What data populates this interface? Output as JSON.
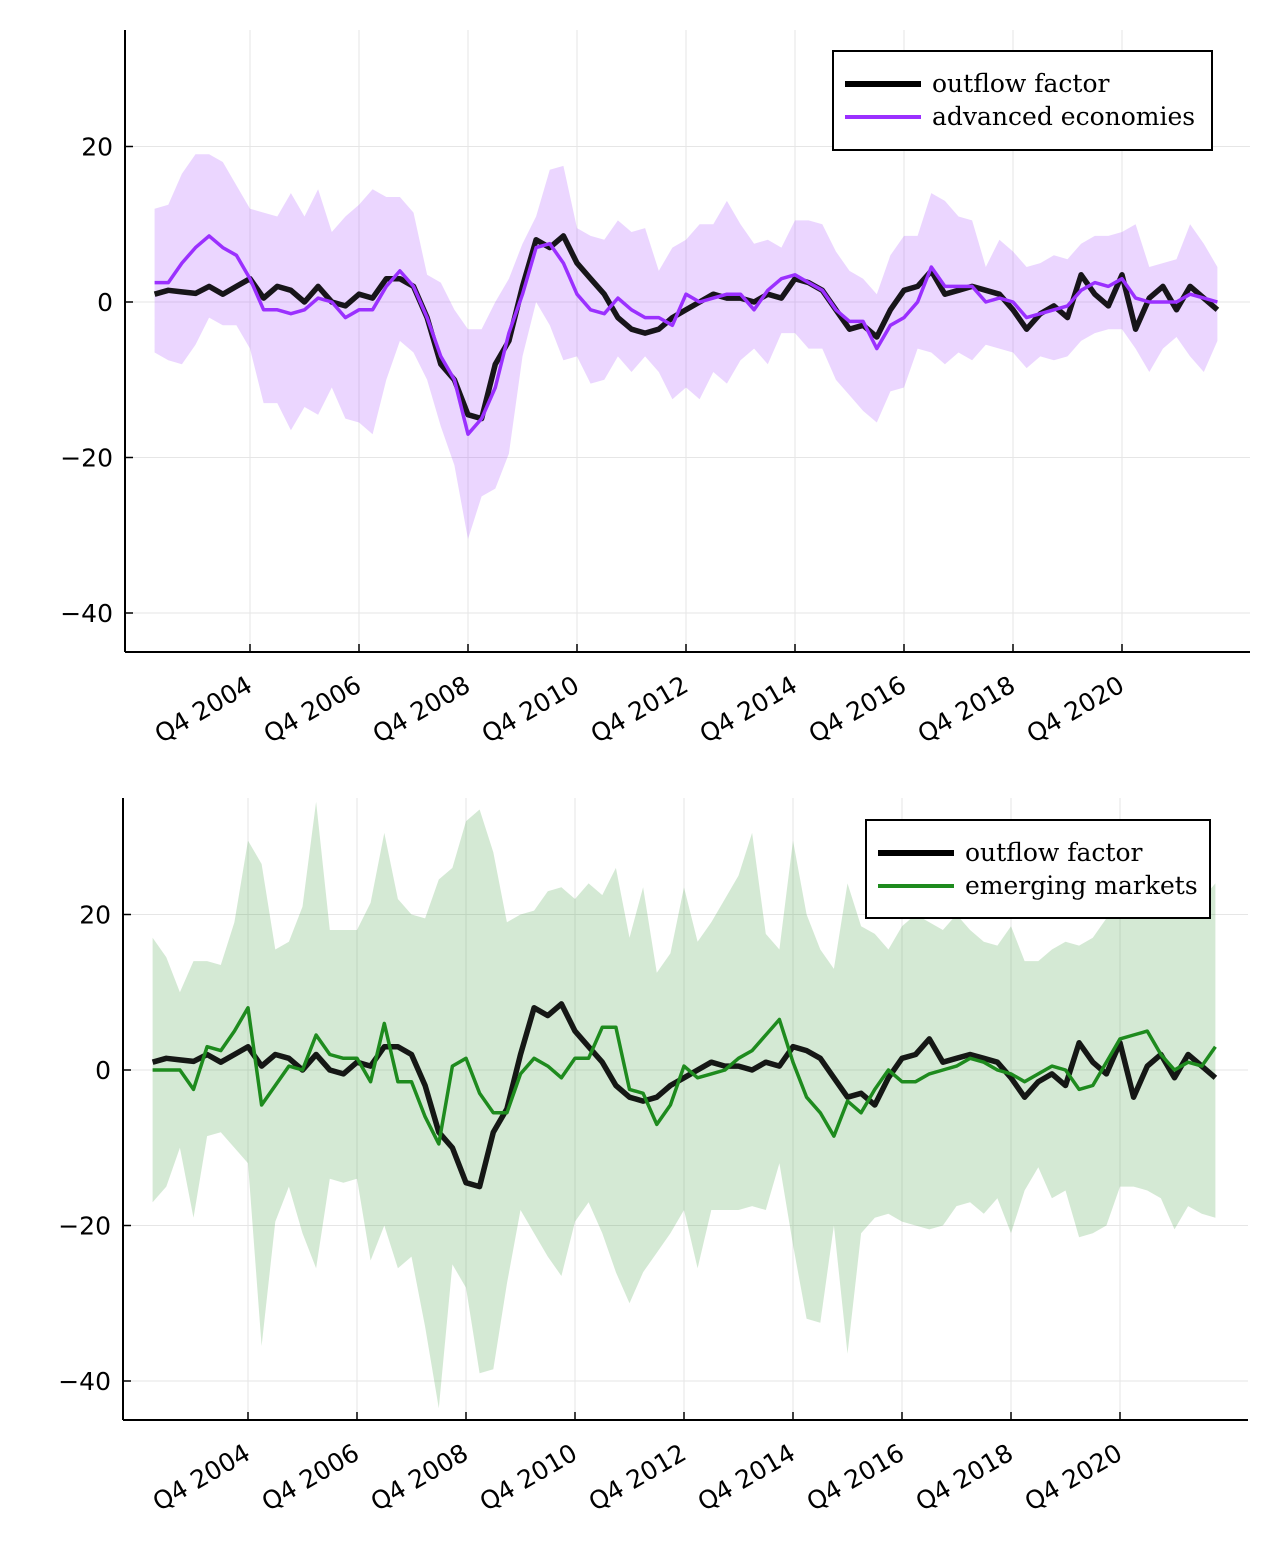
{
  "chart_data": [
    {
      "type": "line",
      "series_labels": [
        "outflow factor",
        "advanced economies"
      ],
      "ylim": [
        -45,
        35
      ],
      "yticks": [
        20,
        0,
        -20,
        -40
      ],
      "ytick_labels": [
        "20",
        "0",
        "−20",
        "−40"
      ],
      "xtick_labels": [
        "Q4 2004",
        "Q4 2006",
        "Q4 2008",
        "Q4 2010",
        "Q4 2012",
        "Q4 2014",
        "Q4 2016",
        "Q4 2018",
        "Q4 2020"
      ],
      "xtick_values": [
        2004.75,
        2006.75,
        2008.75,
        2010.75,
        2012.75,
        2014.75,
        2016.75,
        2018.75,
        2020.75
      ],
      "xlim": [
        2002.4,
        2023.1
      ],
      "grid": true,
      "legend_position": "top-right",
      "colors": {
        "factor": "#000000",
        "series": "#9b30ff",
        "band": "#9b30ff"
      },
      "x_start": 2003.0,
      "x_step": 0.25,
      "factor": [
        1.0,
        1.5,
        1.3,
        1.1,
        2.0,
        1.0,
        2.0,
        3.0,
        0.5,
        2.0,
        1.5,
        0.0,
        2.0,
        0.0,
        -0.5,
        1.0,
        0.5,
        3.0,
        3.0,
        2.0,
        -2.0,
        -8.0,
        -10.0,
        -14.5,
        -15.0,
        -8.0,
        -5.0,
        2.0,
        8.0,
        7.0,
        8.5,
        5.0,
        3.0,
        1.0,
        -2.0,
        -3.5,
        -4.0,
        -3.5,
        -2.0,
        -1.0,
        0.0,
        1.0,
        0.5,
        0.5,
        0.0,
        1.0,
        0.5,
        3.0,
        2.5,
        1.5,
        -1.0,
        -3.5,
        -3.0,
        -4.5,
        -1.0,
        1.5,
        2.0,
        4.0,
        1.0,
        1.5,
        2.0,
        1.5,
        1.0,
        -1.0,
        -3.5,
        -1.5,
        -0.5,
        -2.0,
        3.5,
        1.0,
        -0.5,
        3.5,
        -3.5,
        0.5,
        2.0,
        -1.0,
        2.0,
        0.5,
        -1.0
      ],
      "values": [
        2.5,
        2.5,
        5.0,
        7.0,
        8.5,
        7.0,
        6.0,
        3.0,
        -1.0,
        -1.0,
        -1.5,
        -1.0,
        0.5,
        0.0,
        -2.0,
        -1.0,
        -1.0,
        2.0,
        4.0,
        2.0,
        -2.0,
        -7.0,
        -10.0,
        -17.0,
        -15.0,
        -11.0,
        -4.0,
        1.0,
        7.0,
        7.5,
        5.0,
        1.0,
        -1.0,
        -1.5,
        0.5,
        -1.0,
        -2.0,
        -2.0,
        -3.0,
        1.0,
        0.0,
        0.5,
        1.0,
        1.0,
        -1.0,
        1.5,
        3.0,
        3.5,
        2.5,
        1.5,
        -1.0,
        -2.5,
        -2.5,
        -6.0,
        -3.0,
        -2.0,
        0.0,
        4.5,
        2.0,
        2.0,
        2.0,
        0.0,
        0.5,
        0.0,
        -2.0,
        -1.5,
        -1.0,
        -0.5,
        1.5,
        2.5,
        2.0,
        3.0,
        0.5,
        0.0,
        0.0,
        0.0,
        1.0,
        0.5,
        0.0
      ],
      "band_upper": [
        12.0,
        12.5,
        16.5,
        19.0,
        19.0,
        18.0,
        15.0,
        12.0,
        11.5,
        11.0,
        14.0,
        11.0,
        14.5,
        9.0,
        11.0,
        12.5,
        14.5,
        13.5,
        13.5,
        11.5,
        3.5,
        2.5,
        -1.0,
        -3.5,
        -3.5,
        0.0,
        3.0,
        7.5,
        11.0,
        17.0,
        17.5,
        9.5,
        8.5,
        8.0,
        10.5,
        9.0,
        9.5,
        4.0,
        7.0,
        8.0,
        10.0,
        10.0,
        13.0,
        10.0,
        7.5,
        8.0,
        7.0,
        10.5,
        10.5,
        10.0,
        6.5,
        4.0,
        3.0,
        1.0,
        6.0,
        8.5,
        8.5,
        14.0,
        13.0,
        11.0,
        10.5,
        4.5,
        8.0,
        6.5,
        4.5,
        5.0,
        6.0,
        5.5,
        7.5,
        8.5,
        8.5,
        9.0,
        10.0,
        4.5,
        5.0,
        5.5,
        10.0,
        7.5,
        4.5
      ],
      "band_lower": [
        -6.5,
        -7.5,
        -8.0,
        -5.5,
        -2.0,
        -3.0,
        -3.0,
        -6.0,
        -13.0,
        -13.0,
        -16.5,
        -13.5,
        -14.5,
        -11.0,
        -15.0,
        -15.5,
        -17.0,
        -10.0,
        -5.0,
        -6.5,
        -10.0,
        -16.0,
        -21.0,
        -30.5,
        -25.0,
        -24.0,
        -19.5,
        -7.0,
        0.0,
        -3.0,
        -7.5,
        -7.0,
        -10.5,
        -10.0,
        -7.0,
        -9.0,
        -7.0,
        -9.0,
        -12.5,
        -11.0,
        -12.5,
        -9.0,
        -10.5,
        -7.5,
        -6.0,
        -8.0,
        -4.0,
        -4.0,
        -6.0,
        -6.0,
        -10.0,
        -12.0,
        -14.0,
        -15.5,
        -11.5,
        -11.0,
        -6.0,
        -6.5,
        -8.0,
        -6.5,
        -7.5,
        -5.5,
        -6.0,
        -6.5,
        -8.5,
        -7.0,
        -7.5,
        -7.0,
        -5.0,
        -4.0,
        -3.5,
        -3.5,
        -6.0,
        -9.0,
        -6.0,
        -4.5,
        -7.0,
        -9.0,
        -5.0
      ]
    },
    {
      "type": "line",
      "series_labels": [
        "outflow factor",
        "emerging markets"
      ],
      "ylim": [
        -45,
        35
      ],
      "yticks": [
        20,
        0,
        -20,
        -40
      ],
      "ytick_labels": [
        "20",
        "0",
        "−20",
        "−40"
      ],
      "xtick_labels": [
        "Q4 2004",
        "Q4 2006",
        "Q4 2008",
        "Q4 2010",
        "Q4 2012",
        "Q4 2014",
        "Q4 2016",
        "Q4 2018",
        "Q4 2020"
      ],
      "xtick_values": [
        2004.75,
        2006.75,
        2008.75,
        2010.75,
        2012.75,
        2014.75,
        2016.75,
        2018.75,
        2020.75
      ],
      "xlim": [
        2002.4,
        2023.1
      ],
      "grid": true,
      "legend_position": "top-right",
      "colors": {
        "factor": "#000000",
        "series": "#1e8b1e",
        "band": "#3a9a3a"
      },
      "x_start": 2003.0,
      "x_step": 0.25,
      "factor": [
        1.0,
        1.5,
        1.3,
        1.1,
        2.0,
        1.0,
        2.0,
        3.0,
        0.5,
        2.0,
        1.5,
        0.0,
        2.0,
        0.0,
        -0.5,
        1.0,
        0.5,
        3.0,
        3.0,
        2.0,
        -2.0,
        -8.0,
        -10.0,
        -14.5,
        -15.0,
        -8.0,
        -5.0,
        2.0,
        8.0,
        7.0,
        8.5,
        5.0,
        3.0,
        1.0,
        -2.0,
        -3.5,
        -4.0,
        -3.5,
        -2.0,
        -1.0,
        0.0,
        1.0,
        0.5,
        0.5,
        0.0,
        1.0,
        0.5,
        3.0,
        2.5,
        1.5,
        -1.0,
        -3.5,
        -3.0,
        -4.5,
        -1.0,
        1.5,
        2.0,
        4.0,
        1.0,
        1.5,
        2.0,
        1.5,
        1.0,
        -1.0,
        -3.5,
        -1.5,
        -0.5,
        -2.0,
        3.5,
        1.0,
        -0.5,
        3.5,
        -3.5,
        0.5,
        2.0,
        -1.0,
        2.0,
        0.5,
        -1.0
      ],
      "values": [
        0.0,
        0.0,
        0.0,
        -2.5,
        3.0,
        2.5,
        5.0,
        8.0,
        -4.5,
        -2.0,
        0.5,
        0.0,
        4.5,
        2.0,
        1.5,
        1.5,
        -1.5,
        6.0,
        -1.5,
        -1.5,
        -6.0,
        -9.5,
        0.5,
        1.5,
        -3.0,
        -5.5,
        -5.5,
        -0.5,
        1.5,
        0.5,
        -1.0,
        1.5,
        1.5,
        5.5,
        5.5,
        -2.5,
        -3.0,
        -7.0,
        -4.5,
        0.5,
        -1.0,
        -0.5,
        0.0,
        1.5,
        2.5,
        4.5,
        6.5,
        1.0,
        -3.5,
        -5.5,
        -8.5,
        -4.0,
        -5.5,
        -2.5,
        0.0,
        -1.5,
        -1.5,
        -0.5,
        0.0,
        0.5,
        1.5,
        1.0,
        0.0,
        -0.5,
        -1.5,
        -0.5,
        0.5,
        0.0,
        -2.5,
        -2.0,
        1.0,
        4.0,
        4.5,
        5.0,
        2.0,
        0.0,
        1.0,
        0.5,
        3.0
      ],
      "band_upper": [
        17.0,
        14.5,
        10.0,
        14.0,
        14.0,
        13.5,
        19.0,
        29.5,
        26.5,
        15.5,
        16.5,
        21.0,
        34.5,
        18.0,
        18.0,
        18.0,
        21.5,
        30.5,
        22.0,
        20.0,
        19.5,
        24.5,
        26.0,
        32.0,
        33.5,
        28.0,
        19.0,
        20.0,
        20.5,
        23.0,
        23.5,
        22.0,
        24.0,
        22.5,
        26.0,
        17.0,
        23.5,
        12.5,
        15.0,
        23.5,
        16.5,
        19.0,
        22.0,
        25.0,
        30.5,
        17.5,
        15.5,
        29.5,
        20.0,
        15.5,
        13.0,
        24.0,
        18.5,
        17.5,
        15.5,
        18.5,
        20.0,
        19.0,
        18.0,
        20.0,
        18.0,
        16.5,
        16.0,
        18.5,
        14.0,
        14.0,
        15.5,
        16.5,
        16.0,
        17.0,
        19.5,
        20.0,
        23.0,
        22.5,
        22.0,
        21.5,
        22.0,
        22.0,
        24.0
      ],
      "band_lower": [
        -17.0,
        -15.0,
        -10.0,
        -19.0,
        -8.5,
        -8.0,
        -10.0,
        -12.0,
        -35.5,
        -19.5,
        -15.0,
        -21.0,
        -25.5,
        -14.0,
        -14.5,
        -14.0,
        -24.5,
        -20.0,
        -25.5,
        -24.0,
        -33.0,
        -43.5,
        -25.0,
        -28.0,
        -39.0,
        -38.5,
        -27.5,
        -18.0,
        -21.0,
        -24.0,
        -26.5,
        -19.5,
        -17.0,
        -21.0,
        -26.0,
        -30.0,
        -26.0,
        -23.5,
        -21.0,
        -18.0,
        -25.5,
        -18.0,
        -18.0,
        -18.0,
        -17.5,
        -18.0,
        -12.0,
        -22.5,
        -32.0,
        -32.5,
        -20.0,
        -36.5,
        -21.0,
        -19.0,
        -18.5,
        -19.5,
        -20.0,
        -20.5,
        -20.0,
        -17.5,
        -17.0,
        -18.5,
        -16.5,
        -21.0,
        -15.5,
        -12.5,
        -16.5,
        -15.5,
        -21.5,
        -21.0,
        -20.0,
        -15.0,
        -15.0,
        -15.5,
        -16.5,
        -20.5,
        -17.5,
        -18.5,
        -19.0
      ]
    }
  ]
}
